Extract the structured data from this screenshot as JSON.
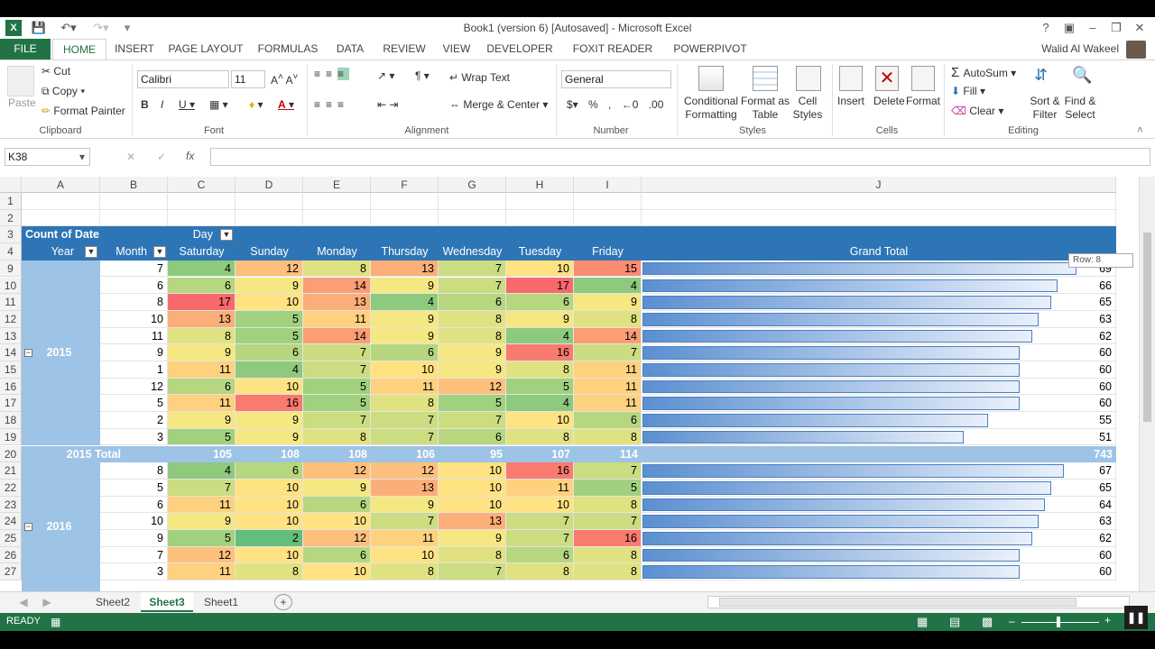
{
  "window": {
    "title": "Book1 (version 6) [Autosaved] - Microsoft Excel",
    "user": "Walid Al Wakeel"
  },
  "tabs": [
    "FILE",
    "HOME",
    "INSERT",
    "PAGE LAYOUT",
    "FORMULAS",
    "DATA",
    "REVIEW",
    "VIEW",
    "DEVELOPER",
    "FOXIT READER PDF",
    "POWERPIVOT"
  ],
  "ribbon": {
    "clipboard": {
      "paste": "Paste",
      "cut": "Cut",
      "copy": "Copy",
      "format_painter": "Format Painter",
      "label": "Clipboard"
    },
    "font": {
      "name": "Calibri",
      "size": "11",
      "label": "Font"
    },
    "alignment": {
      "wrap": "Wrap Text",
      "merge": "Merge & Center",
      "label": "Alignment"
    },
    "number": {
      "format": "General",
      "label": "Number"
    },
    "styles": {
      "conditional": "Conditional",
      "formatting": "Formatting",
      "format_as": "Format as",
      "table": "Table",
      "cell": "Cell",
      "cell_styles": "Styles",
      "label": "Styles"
    },
    "cells": {
      "insert": "Insert",
      "delete": "Delete",
      "format": "Format",
      "label": "Cells"
    },
    "editing": {
      "autosum": "AutoSum",
      "fill": "Fill",
      "clear": "Clear",
      "sort": "Sort &",
      "filter": "Filter",
      "find": "Find &",
      "select": "Select",
      "label": "Editing"
    }
  },
  "formula_bar": {
    "name_box": "K38",
    "fx": "fx",
    "formula": ""
  },
  "columns": [
    "A",
    "B",
    "C",
    "D",
    "E",
    "F",
    "G",
    "H",
    "I",
    "J"
  ],
  "pivot": {
    "count_label": "Count of Date",
    "day_label": "Day",
    "year_label": "Year",
    "month_label": "Month",
    "days": [
      "Saturday",
      "Sunday",
      "Monday",
      "Thursday",
      "Wednesday",
      "Tuesday",
      "Friday"
    ],
    "grand_total": "Grand Total",
    "tooltip": "Row: 8",
    "rows": [
      {
        "r": "9",
        "m": "7",
        "v": [
          4,
          12,
          8,
          13,
          7,
          10,
          15
        ],
        "t": 69
      },
      {
        "r": "10",
        "m": "6",
        "v": [
          6,
          9,
          14,
          9,
          7,
          17,
          4
        ],
        "t": 66
      },
      {
        "r": "11",
        "m": "8",
        "v": [
          17,
          10,
          13,
          4,
          6,
          6,
          9
        ],
        "t": 65
      },
      {
        "r": "12",
        "m": "10",
        "v": [
          13,
          5,
          11,
          9,
          8,
          9,
          8
        ],
        "t": 63
      },
      {
        "r": "13",
        "m": "11",
        "v": [
          8,
          5,
          14,
          9,
          8,
          4,
          14
        ],
        "t": 62
      },
      {
        "r": "14",
        "m": "9",
        "v": [
          9,
          6,
          7,
          6,
          9,
          16,
          7
        ],
        "t": 60
      },
      {
        "r": "15",
        "m": "1",
        "v": [
          11,
          4,
          7,
          10,
          9,
          8,
          11
        ],
        "t": 60
      },
      {
        "r": "16",
        "m": "12",
        "v": [
          6,
          10,
          5,
          11,
          12,
          5,
          11
        ],
        "t": 60
      },
      {
        "r": "17",
        "m": "5",
        "v": [
          11,
          16,
          5,
          8,
          5,
          4,
          11
        ],
        "t": 60
      },
      {
        "r": "18",
        "m": "2",
        "v": [
          9,
          9,
          7,
          7,
          7,
          10,
          6
        ],
        "t": 55
      },
      {
        "r": "19",
        "m": "3",
        "v": [
          5,
          9,
          8,
          7,
          6,
          8,
          8
        ],
        "t": 51
      },
      {
        "r": "20",
        "total": "2015 Total",
        "v": [
          105,
          108,
          108,
          106,
          95,
          107,
          114
        ],
        "t": 743
      },
      {
        "r": "21",
        "m": "8",
        "v": [
          4,
          6,
          12,
          12,
          10,
          16,
          7
        ],
        "t": 67
      },
      {
        "r": "22",
        "m": "5",
        "v": [
          7,
          10,
          9,
          13,
          10,
          11,
          5
        ],
        "t": 65
      },
      {
        "r": "23",
        "m": "6",
        "v": [
          11,
          10,
          6,
          9,
          10,
          10,
          8
        ],
        "t": 64
      },
      {
        "r": "24",
        "m": "10",
        "v": [
          9,
          10,
          10,
          7,
          13,
          7,
          7
        ],
        "t": 63
      },
      {
        "r": "25",
        "m": "9",
        "v": [
          5,
          2,
          12,
          11,
          9,
          7,
          16
        ],
        "t": 62
      },
      {
        "r": "26",
        "m": "7",
        "v": [
          12,
          10,
          6,
          10,
          8,
          6,
          8
        ],
        "t": 60
      },
      {
        "r": "27",
        "m": "3",
        "v": [
          11,
          8,
          10,
          8,
          7,
          8,
          8
        ],
        "t": 60
      }
    ],
    "years": [
      {
        "label": "2015"
      },
      {
        "label": "2016"
      }
    ]
  },
  "sheets": [
    "Sheet2",
    "Sheet3",
    "Sheet1"
  ],
  "active_sheet": "Sheet3",
  "status": "READY",
  "colors": {
    "excel_green": "#217346",
    "pivot_header": "#2e75b6",
    "pivot_light": "#9dc3e6"
  }
}
